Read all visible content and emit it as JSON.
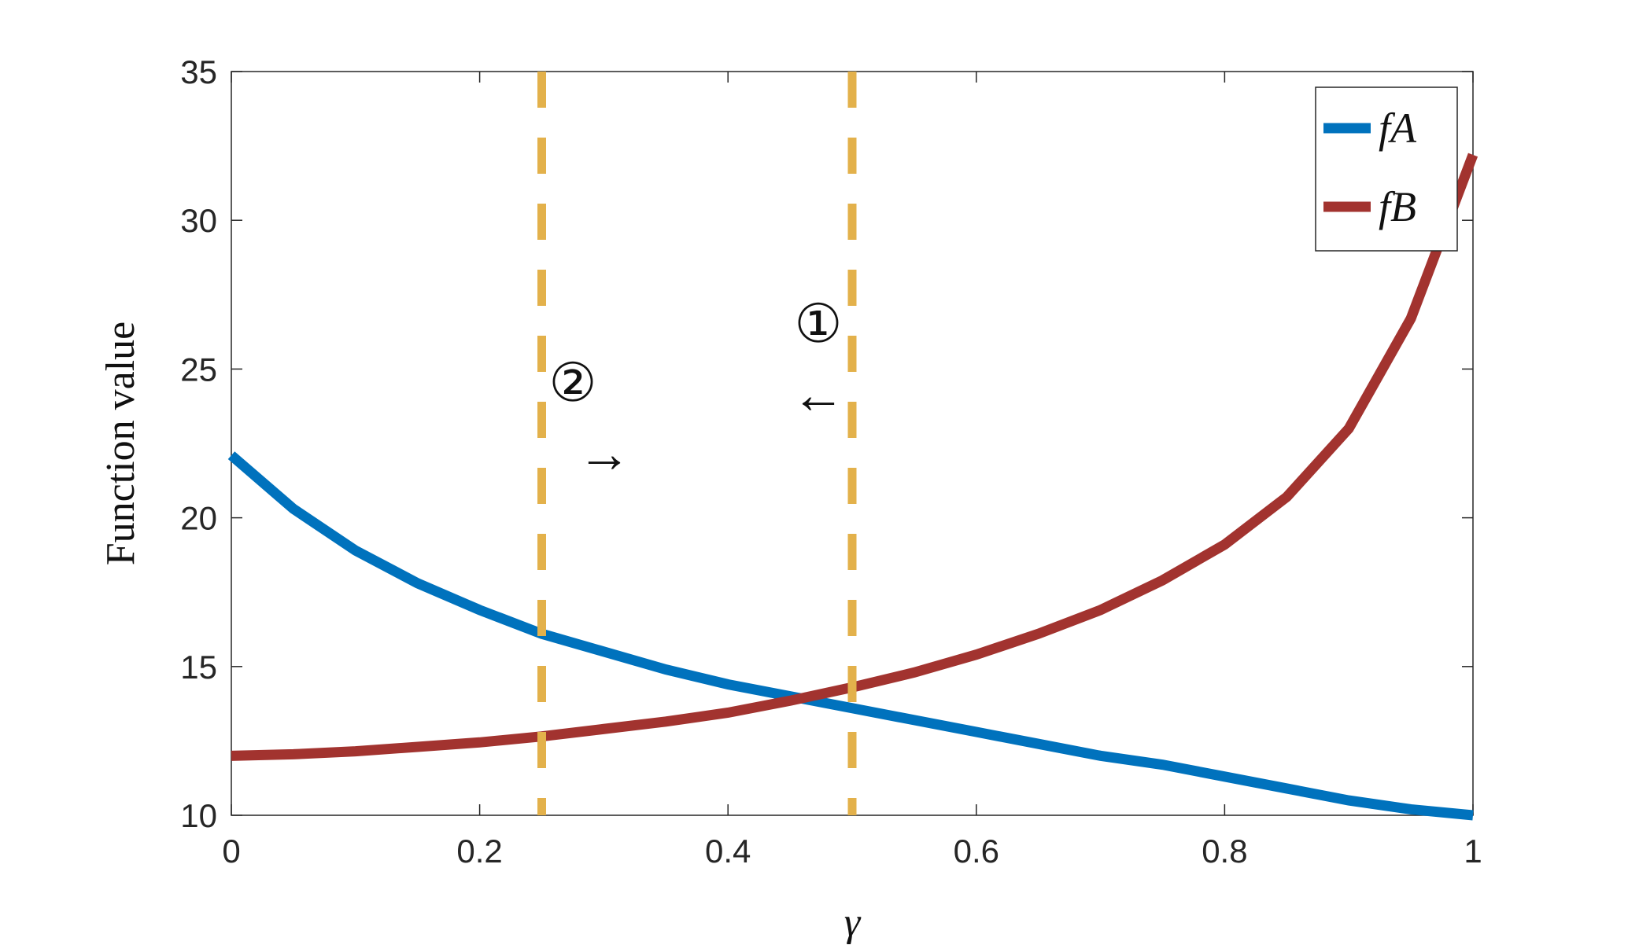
{
  "chart_data": {
    "type": "line",
    "x": [
      0,
      0.05,
      0.1,
      0.15,
      0.2,
      0.25,
      0.3,
      0.35,
      0.4,
      0.45,
      0.5,
      0.55,
      0.6,
      0.65,
      0.7,
      0.75,
      0.8,
      0.85,
      0.9,
      0.95,
      1
    ],
    "series": [
      {
        "name": "fA",
        "color": "#0072bd",
        "values": [
          22.1,
          20.3,
          18.9,
          17.8,
          16.9,
          16.1,
          15.5,
          14.9,
          14.4,
          14.0,
          13.6,
          13.2,
          12.8,
          12.4,
          12.0,
          11.7,
          11.3,
          10.9,
          10.5,
          10.2,
          10.0
        ]
      },
      {
        "name": "fB",
        "color": "#a2332f",
        "values": [
          12.0,
          12.05,
          12.15,
          12.3,
          12.45,
          12.65,
          12.9,
          13.15,
          13.45,
          13.85,
          14.3,
          14.8,
          15.4,
          16.1,
          16.9,
          17.9,
          19.1,
          20.7,
          23.0,
          26.7,
          32.2
        ]
      }
    ],
    "xlabel": "γ",
    "ylabel": "Function value",
    "xlim": [
      0,
      1
    ],
    "xticks": [
      0,
      0.2,
      0.4,
      0.6,
      0.8,
      1
    ],
    "ylim": [
      10,
      35
    ],
    "yticks": [
      10,
      15,
      20,
      25,
      30,
      35
    ],
    "vlines": [
      0.25,
      0.5
    ],
    "vline_color": "#e3b14b",
    "annotations": [
      "②",
      "→",
      "①",
      "←"
    ],
    "legend": "northeast"
  }
}
